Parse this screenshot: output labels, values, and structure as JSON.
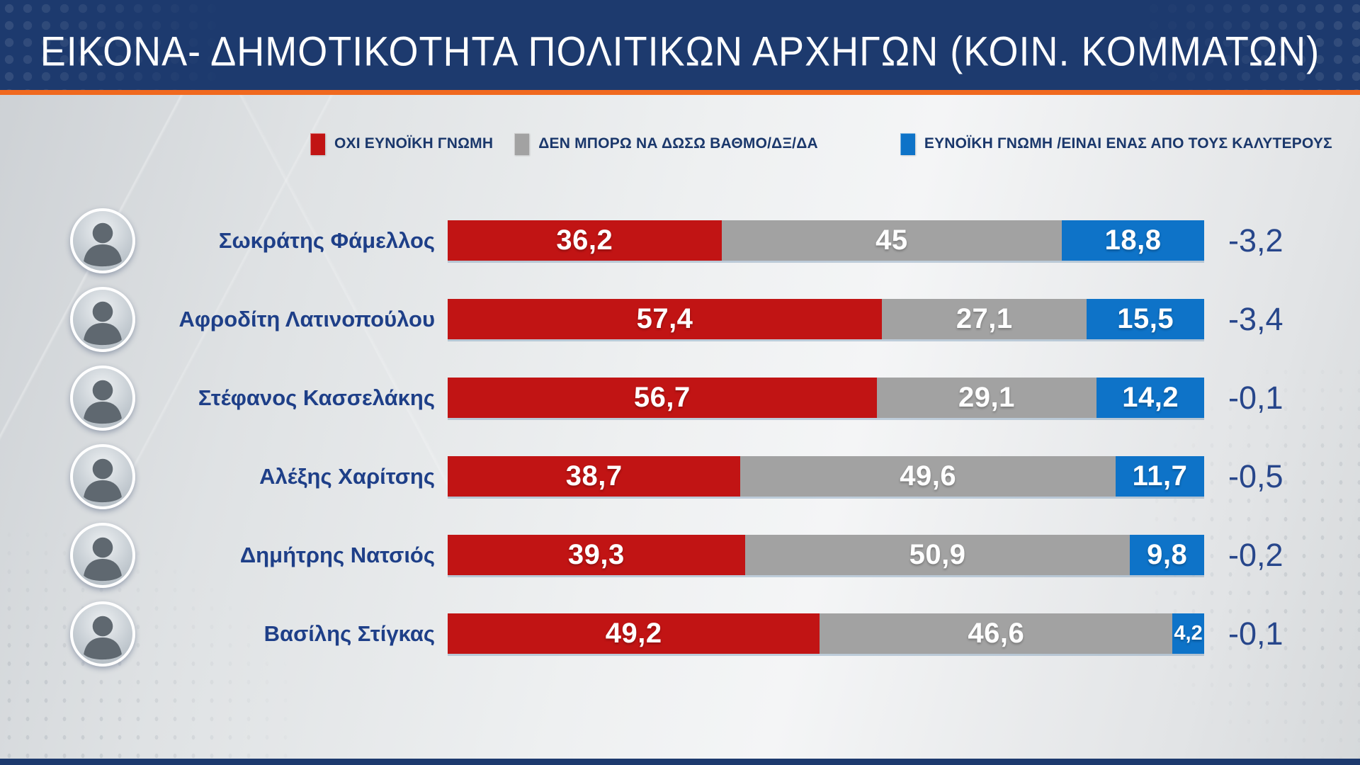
{
  "title": "ΕΙΚΟΝΑ- ΔΗΜΟΤΙΚΟΤΗΤΑ ΠΟΛΙΤΙΚΩΝ ΑΡΧΗΓΩΝ (ΚΟΙΝ. ΚΟΜΜΑΤΩΝ)",
  "colors": {
    "header_navy": "#1d3a6e",
    "accent_orange": "#f0691f",
    "negative_red": "#c11414",
    "neutral_gray": "#a2a2a2",
    "positive_blue": "#0e73c8",
    "name_text_navy": "#1e3f88",
    "delta_text_navy": "#27468b",
    "legend_text_navy": "#1a376b",
    "value_text_white": "#ffffff"
  },
  "legend": {
    "items": [
      {
        "label": "ΟΧΙ ΕΥΝΟΪΚΗ ΓΝΩΜΗ",
        "color": "#c11414"
      },
      {
        "label": "ΔΕΝ ΜΠΟΡΩ ΝΑ ΔΩΣΩ ΒΑΘΜΟ/ΔΞ/ΔΑ",
        "color": "#a2a2a2"
      },
      {
        "label": "ΕΥΝΟΪΚΗ ΓΝΩΜΗ /ΕΙΝΑΙ ΕΝΑΣ ΑΠΟ ΤΟΥΣ ΚΑΛΥΤΕΡΟΥΣ",
        "color": "#0e73c8"
      }
    ]
  },
  "chart_data": {
    "type": "bar",
    "orientation": "horizontal",
    "stacked": true,
    "x_range": [
      0,
      100
    ],
    "grid": false,
    "legend_position": "top",
    "categories": [
      "Σωκράτης Φάμελλος",
      "Αφροδίτη Λατινοπούλου",
      "Στέφανος Κασσελάκης",
      "Αλέξης Χαρίτσης",
      "Δημήτρης Νατσιός",
      "Βασίλης Στίγκας"
    ],
    "series": [
      {
        "name": "ΟΧΙ ΕΥΝΟΪΚΗ ΓΝΩΜΗ",
        "color": "#c11414",
        "values": [
          36.2,
          57.4,
          56.7,
          38.7,
          39.3,
          49.2
        ]
      },
      {
        "name": "ΔΕΝ ΜΠΟΡΩ ΝΑ ΔΩΣΩ ΒΑΘΜΟ/ΔΞ/ΔΑ",
        "color": "#a2a2a2",
        "values": [
          45,
          27.1,
          29.1,
          49.6,
          50.9,
          46.6
        ]
      },
      {
        "name": "ΕΥΝΟΪΚΗ ΓΝΩΜΗ /ΕΙΝΑΙ ΕΝΑΣ ΑΠΟ ΤΟΥΣ ΚΑΛΥΤΕΡΟΥΣ",
        "color": "#0e73c8",
        "values": [
          18.8,
          15.5,
          14.2,
          11.7,
          9.8,
          4.2
        ]
      }
    ],
    "value_labels": [
      [
        "36,2",
        "45",
        "18,8"
      ],
      [
        "57,4",
        "27,1",
        "15,5"
      ],
      [
        "56,7",
        "29,1",
        "14,2"
      ],
      [
        "38,7",
        "49,6",
        "11,7"
      ],
      [
        "39,3",
        "50,9",
        "9,8"
      ],
      [
        "49,2",
        "46,6",
        "4,2"
      ]
    ],
    "deltas": [
      "-3,2",
      "-3,4",
      "-0,1",
      "-0,5",
      "-0,2",
      "-0,1"
    ]
  }
}
